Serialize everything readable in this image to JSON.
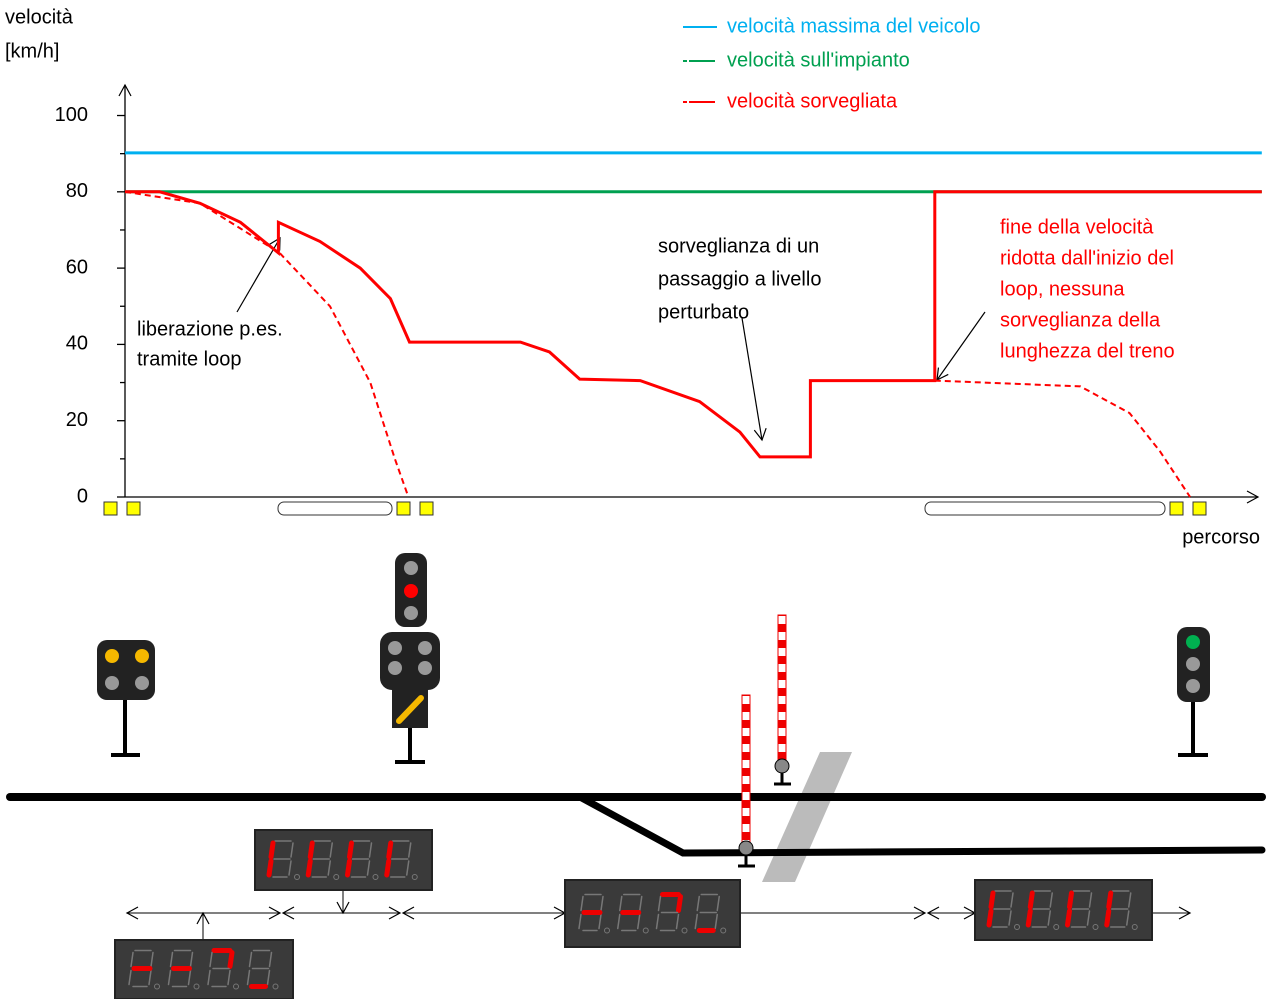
{
  "chart_data": {
    "type": "line",
    "y_label": [
      "velocità",
      "[km/h]"
    ],
    "x_label": "percorso",
    "xlim": [
      0,
      100
    ],
    "ylim": [
      0,
      108
    ],
    "yticks": [
      0,
      20,
      40,
      60,
      80,
      100
    ],
    "series": [
      {
        "name": "velocità massima del veicolo",
        "color": "#00b0f0",
        "x": [
          0,
          101.5
        ],
        "values": [
          90.2,
          90.2
        ]
      },
      {
        "name": "velocità sull'impianto",
        "color": "#00a050",
        "x": [
          0,
          101.5
        ],
        "values": [
          80,
          80
        ]
      },
      {
        "name": "velocità sorvegliata",
        "color": "#ff0000",
        "x": [
          0,
          3.1,
          6.7,
          10.3,
          13.7,
          13.7,
          17.4,
          21,
          23.7,
          25.4,
          35.3,
          37.9,
          40.6,
          46,
          51.3,
          54.9,
          56.7,
          61.2,
          61.2,
          72.3,
          72.3,
          101.5
        ],
        "values": [
          80,
          80,
          77,
          72,
          64,
          72,
          67,
          60,
          52,
          40.6,
          40.6,
          38,
          30.9,
          30.5,
          25,
          17,
          10.5,
          10.5,
          30.5,
          30.5,
          80,
          80
        ]
      },
      {
        "color": "#ff0000",
        "dash": true,
        "x": [
          0,
          6.7,
          13.8,
          18.3,
          21.9,
          24.1,
          25.3,
          null,
          72.3,
          85.3,
          89.7,
          92.4,
          95.1
        ],
        "values": [
          80,
          77,
          64,
          50,
          30,
          10,
          0,
          null,
          30.5,
          29,
          22,
          12,
          0
        ]
      }
    ],
    "annotations": [
      {
        "lines": [
          "liberazione p.es.",
          "tramite loop"
        ],
        "color": "#000000"
      },
      {
        "lines": [
          "sorveglianza di un",
          "passaggio a livello",
          "perturbato"
        ],
        "color": "#000000"
      },
      {
        "lines": [
          "fine della velocità",
          "ridotta dall'inizio del",
          "loop, nessuna",
          "sorveglianza della",
          "lunghezza del treno"
        ],
        "color": "#ff0000"
      }
    ]
  }
}
